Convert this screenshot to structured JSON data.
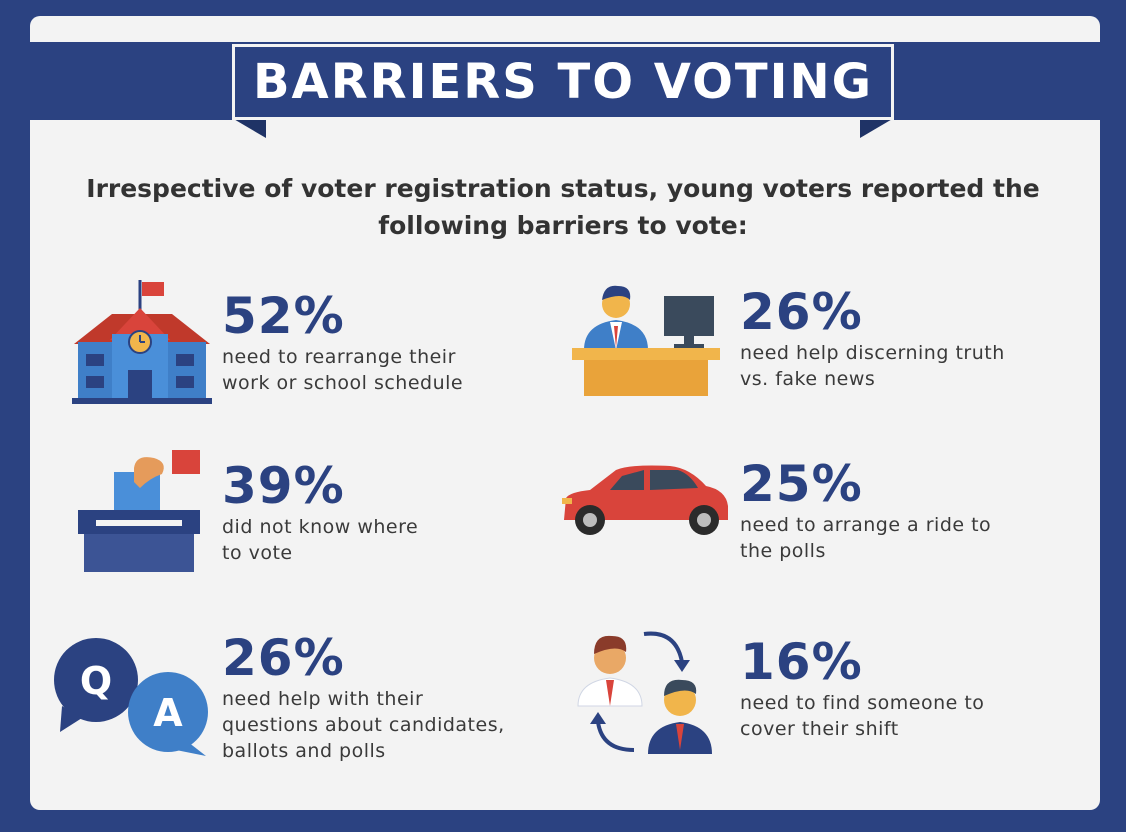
{
  "header": {
    "title": "BARRIERS TO VOTING"
  },
  "intro": "Irrespective of voter registration status, young voters reported the following barriers to vote:",
  "barriers": [
    {
      "percent": "52%",
      "line1": "need to rearrange their",
      "line2": "work or school schedule",
      "line3": "",
      "icon": "school-icon"
    },
    {
      "percent": "26%",
      "line1": "need help discerning truth",
      "line2": "vs. fake news",
      "line3": "",
      "icon": "desk-worker-icon"
    },
    {
      "percent": "39%",
      "line1": "did not know where",
      "line2": "to vote",
      "line3": "",
      "icon": "ballot-box-icon"
    },
    {
      "percent": "25%",
      "line1": "need to arrange a ride to",
      "line2": "the polls",
      "line3": "",
      "icon": "car-icon"
    },
    {
      "percent": "26%",
      "line1": "need help with their",
      "line2": "questions about candidates,",
      "line3": "ballots and polls",
      "icon": "qa-bubbles-icon"
    },
    {
      "percent": "16%",
      "line1": "need to find someone to",
      "line2": "cover their shift",
      "line3": "",
      "icon": "shift-swap-icon"
    }
  ],
  "colors": {
    "navy": "#2b4281",
    "red": "#d9443b",
    "blue": "#3f7fc8",
    "yellow": "#f1b54b"
  }
}
